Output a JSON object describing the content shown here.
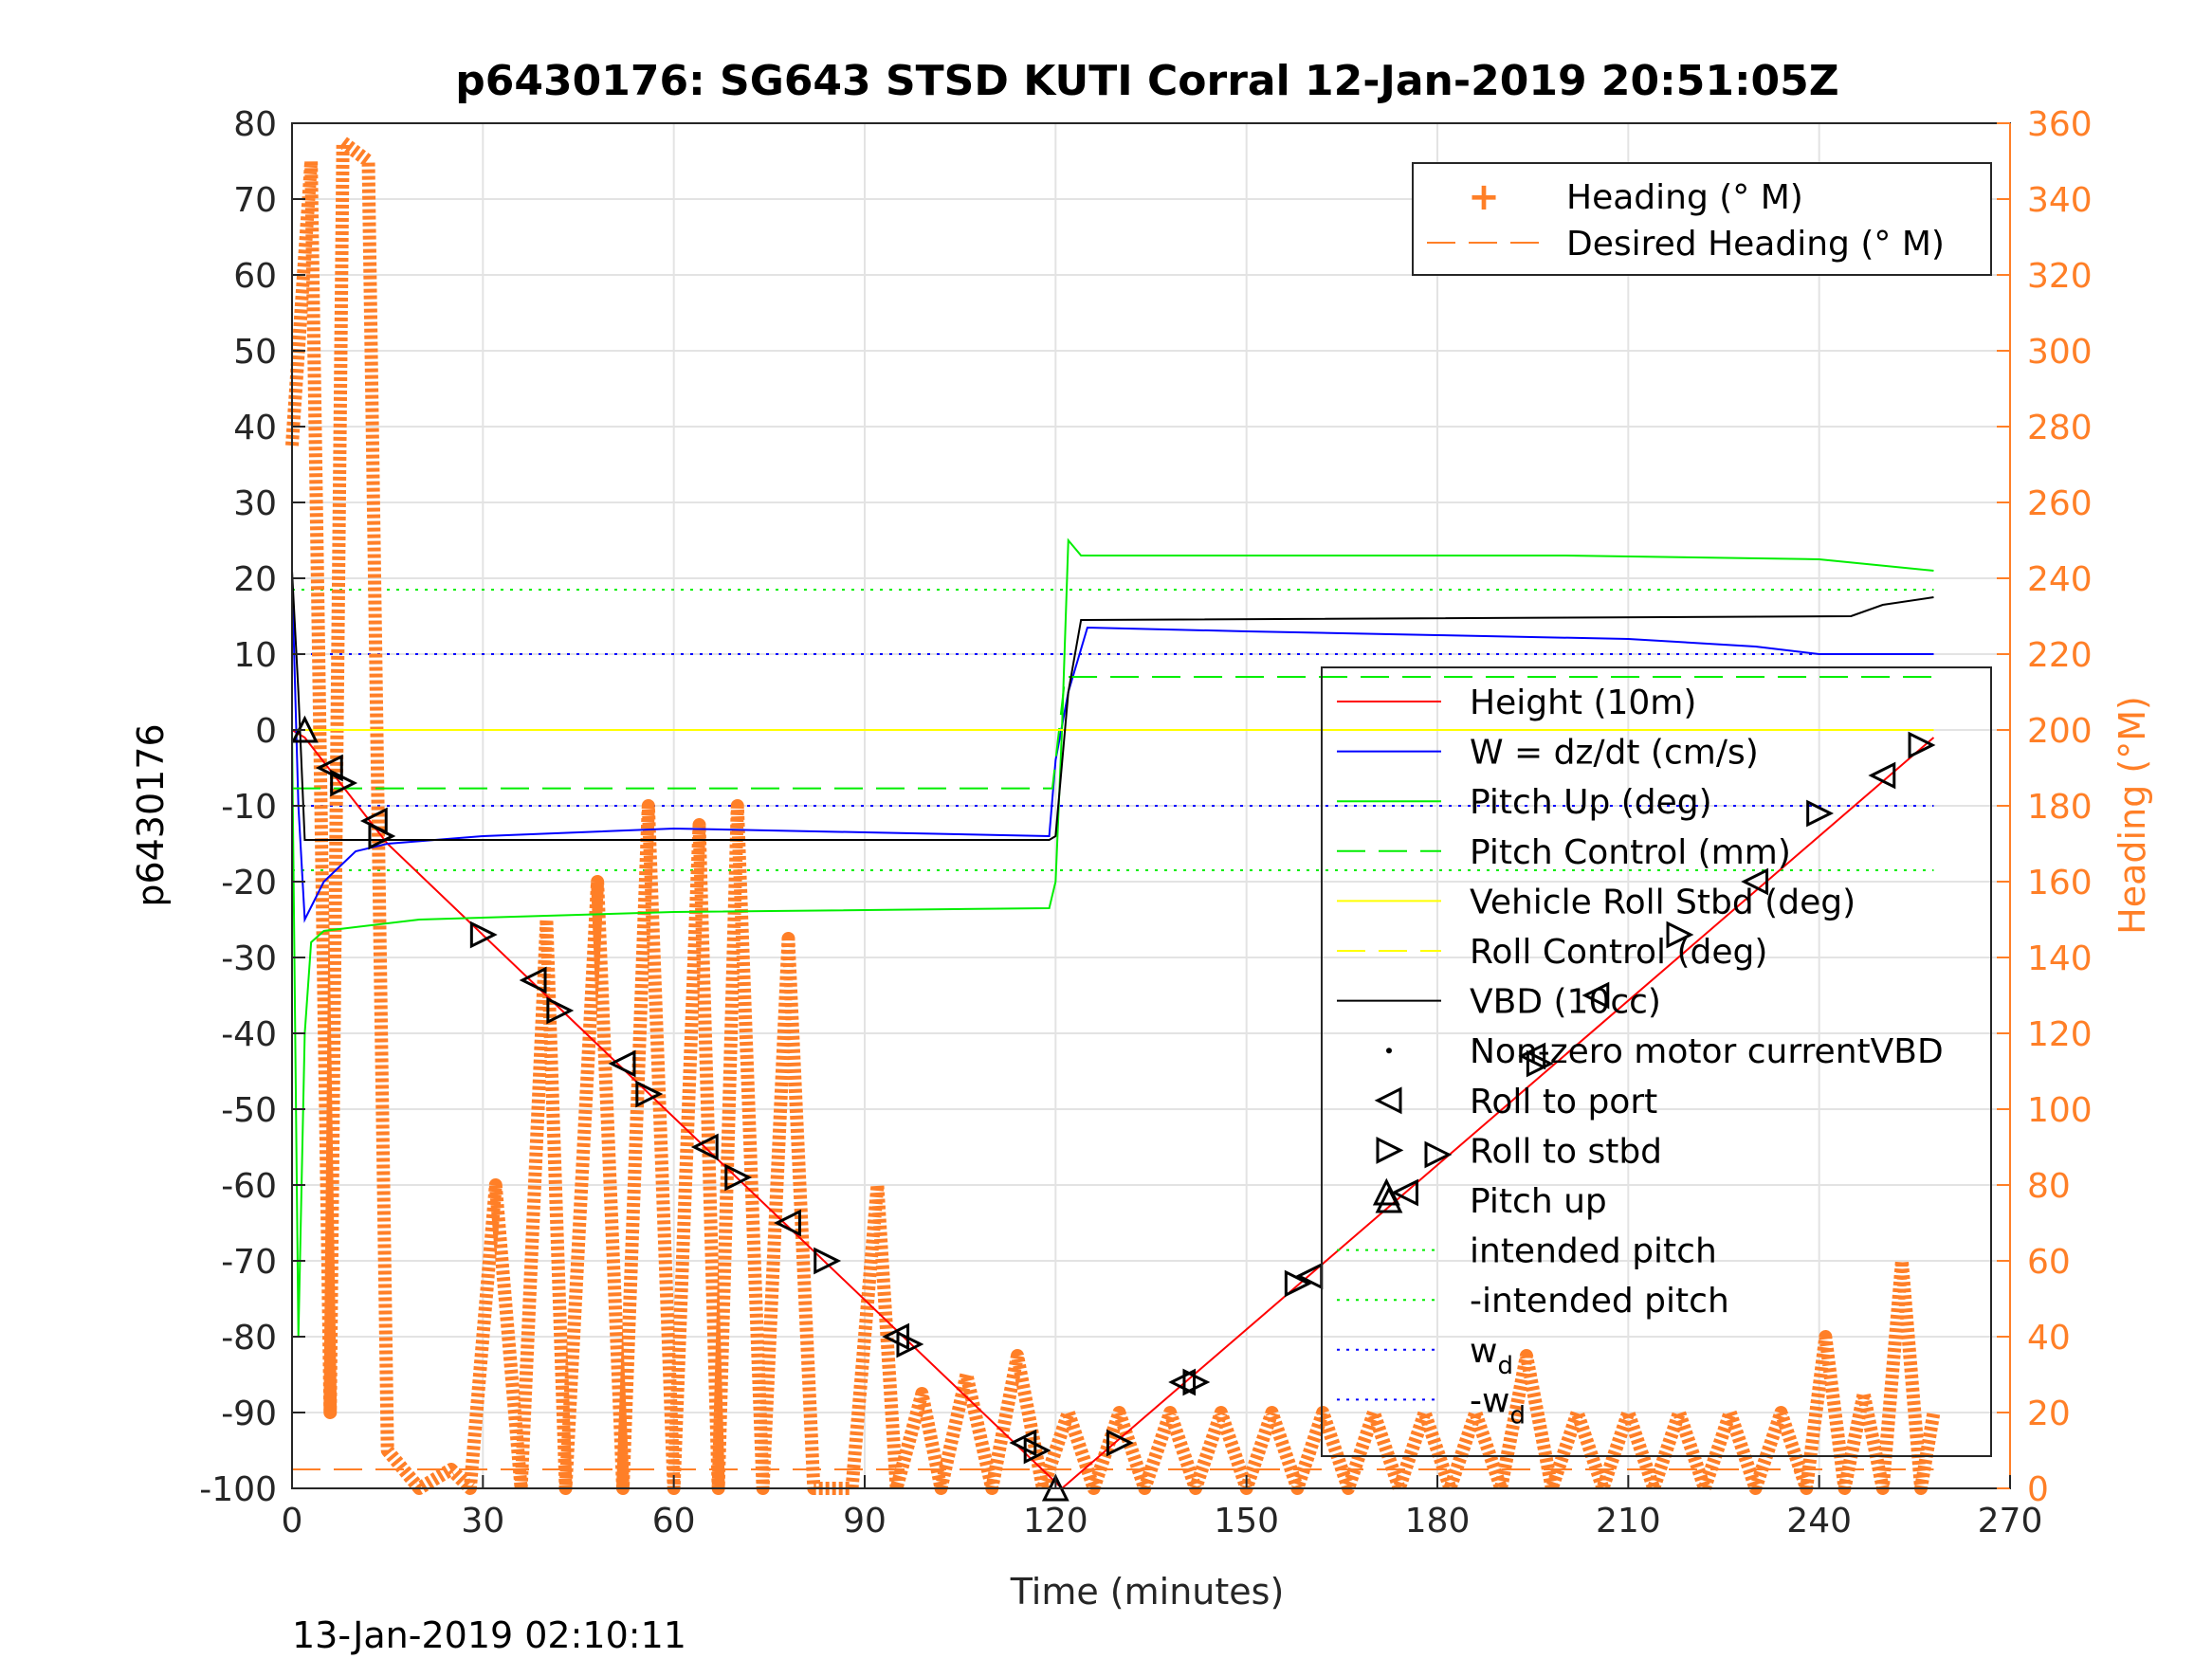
{
  "chart_data": {
    "type": "line",
    "title": "p6430176: SG643 STSD KUTI Corral 12-Jan-2019 20:51:05Z",
    "xlabel": "Time (minutes)",
    "ylabel": "p6430176",
    "y2label": "Heading (°M)",
    "footer": "13-Jan-2019 02:10:11",
    "xlim": [
      0,
      270
    ],
    "ylim": [
      -100,
      80
    ],
    "y2lim": [
      0,
      360
    ],
    "xticks": [
      0,
      30,
      60,
      90,
      120,
      150,
      180,
      210,
      240,
      270
    ],
    "yticks": [
      -100,
      -90,
      -80,
      -70,
      -60,
      -50,
      -40,
      -30,
      -20,
      -10,
      0,
      10,
      20,
      30,
      40,
      50,
      60,
      70,
      80
    ],
    "y2ticks": [
      0,
      20,
      40,
      60,
      80,
      100,
      120,
      140,
      160,
      180,
      200,
      220,
      240,
      260,
      280,
      300,
      320,
      340,
      360
    ],
    "grid": true,
    "colors": {
      "height": "#ff0000",
      "w": "#0000ff",
      "pitch": "#00ee00",
      "roll": "#ffff00",
      "vbd": "#000000",
      "heading": "#ff7f27",
      "axis": "#262626"
    },
    "legend_heading": {
      "placement": "top-right",
      "entries": [
        "Heading (° M)",
        "Desired Heading (° M)"
      ]
    },
    "legend_main": {
      "placement": "right",
      "entries": [
        "Height (10m)",
        "W = dz/dt (cm/s)",
        "Pitch Up (deg)",
        "Pitch Control (mm)",
        "Vehicle Roll Stbd (deg)",
        "Roll Control (deg)",
        "VBD (10cc)",
        "Non-zero motor currentVBD",
        "Roll to port",
        "Roll to stbd",
        "Pitch up",
        "intended pitch",
        "-intended pitch",
        "w",
        "-w"
      ],
      "subscript": "d"
    },
    "reference_lines": {
      "intended_pitch": 18.5,
      "neg_intended_pitch": -18.5,
      "w_d": 10,
      "neg_w_d": -10,
      "desired_heading_deg": 5
    },
    "series": [
      {
        "name": "Height (10m)",
        "x": [
          0,
          2,
          15,
          121,
          258
        ],
        "y": [
          0,
          -1,
          -15,
          -100,
          -1
        ]
      },
      {
        "name": "W = dz/dt (cm/s)",
        "x": [
          0,
          1,
          2,
          5,
          10,
          15,
          30,
          60,
          90,
          119,
          120,
          122,
          125,
          150,
          180,
          210,
          230,
          240,
          250,
          258
        ],
        "y": [
          20,
          -10,
          -25,
          -20,
          -16,
          -15,
          -14,
          -13,
          -13.5,
          -14,
          -4,
          5,
          13.5,
          13,
          12.5,
          12,
          11,
          10,
          10,
          10
        ]
      },
      {
        "name": "Pitch Up (deg)",
        "x": [
          0,
          1,
          2,
          3,
          5,
          20,
          60,
          119,
          120,
          121,
          122,
          124,
          150,
          200,
          240,
          258
        ],
        "y": [
          0,
          -80,
          -40,
          -28,
          -26.5,
          -25,
          -24,
          -23.5,
          -20,
          0,
          25,
          23,
          23,
          23,
          22.5,
          21
        ]
      },
      {
        "name": "Pitch Control (mm)",
        "x": [
          0,
          119.5,
          121.5,
          258
        ],
        "y": [
          -7.7,
          -7.7,
          7,
          7
        ]
      },
      {
        "name": "Vehicle Roll Stbd (deg)",
        "x": [
          0,
          258
        ],
        "y": [
          0,
          0
        ]
      },
      {
        "name": "Roll Control (deg)",
        "x": [
          0,
          258
        ],
        "y": [
          0,
          0
        ]
      },
      {
        "name": "VBD (10cc)",
        "x": [
          0,
          1,
          2,
          119,
          120,
          122,
          124,
          245,
          250,
          258
        ],
        "y": [
          21,
          5,
          -14.5,
          -14.5,
          -14,
          5,
          14.5,
          15,
          16.5,
          17.5
        ]
      },
      {
        "name": "Heading (° M)",
        "x": [
          0,
          3,
          6,
          8,
          12,
          15,
          20,
          25,
          28,
          32,
          36,
          40,
          43,
          48,
          52,
          56,
          60,
          64,
          67,
          70,
          74,
          78,
          82,
          85,
          88,
          92,
          95,
          99,
          102,
          106,
          110,
          114,
          118,
          122,
          126,
          130,
          134,
          138,
          142,
          146,
          150,
          154,
          158,
          162,
          166,
          170,
          174,
          178,
          182,
          186,
          190,
          194,
          198,
          202,
          206,
          210,
          214,
          218,
          222,
          226,
          230,
          234,
          238,
          241,
          244,
          247,
          250,
          253,
          256,
          258
        ],
        "y": [
          275,
          350,
          20,
          355,
          350,
          10,
          0,
          5,
          0,
          80,
          0,
          150,
          0,
          160,
          0,
          180,
          0,
          175,
          0,
          180,
          0,
          145,
          0,
          0,
          0,
          80,
          0,
          25,
          0,
          30,
          0,
          35,
          0,
          20,
          0,
          20,
          0,
          20,
          0,
          20,
          0,
          20,
          0,
          20,
          0,
          20,
          0,
          20,
          0,
          20,
          0,
          35,
          0,
          20,
          0,
          20,
          0,
          20,
          0,
          20,
          0,
          20,
          0,
          40,
          0,
          25,
          0,
          60,
          0,
          20
        ]
      }
    ],
    "markers": {
      "roll_to_port": [
        [
          6,
          -5
        ],
        [
          13,
          -12
        ],
        [
          38,
          -33
        ],
        [
          52,
          -44
        ],
        [
          65,
          -55
        ],
        [
          78,
          -65
        ],
        [
          95,
          -80
        ],
        [
          115,
          -94
        ],
        [
          140,
          -86
        ],
        [
          160,
          -72
        ],
        [
          175,
          -61
        ],
        [
          195,
          -43
        ],
        [
          205,
          -35
        ],
        [
          230,
          -20
        ],
        [
          250,
          -6
        ]
      ],
      "roll_to_stbd": [
        [
          8,
          -7
        ],
        [
          14,
          -14
        ],
        [
          30,
          -27
        ],
        [
          42,
          -37
        ],
        [
          56,
          -48
        ],
        [
          70,
          -59
        ],
        [
          84,
          -70
        ],
        [
          97,
          -81
        ],
        [
          117,
          -95
        ],
        [
          130,
          -94
        ],
        [
          142,
          -86
        ],
        [
          158,
          -73
        ],
        [
          180,
          -56
        ],
        [
          196,
          -44
        ],
        [
          218,
          -27
        ],
        [
          240,
          -11
        ],
        [
          256,
          -2
        ]
      ],
      "pitch_up": [
        [
          2,
          0
        ],
        [
          120,
          -100
        ],
        [
          172,
          -61
        ]
      ]
    }
  }
}
